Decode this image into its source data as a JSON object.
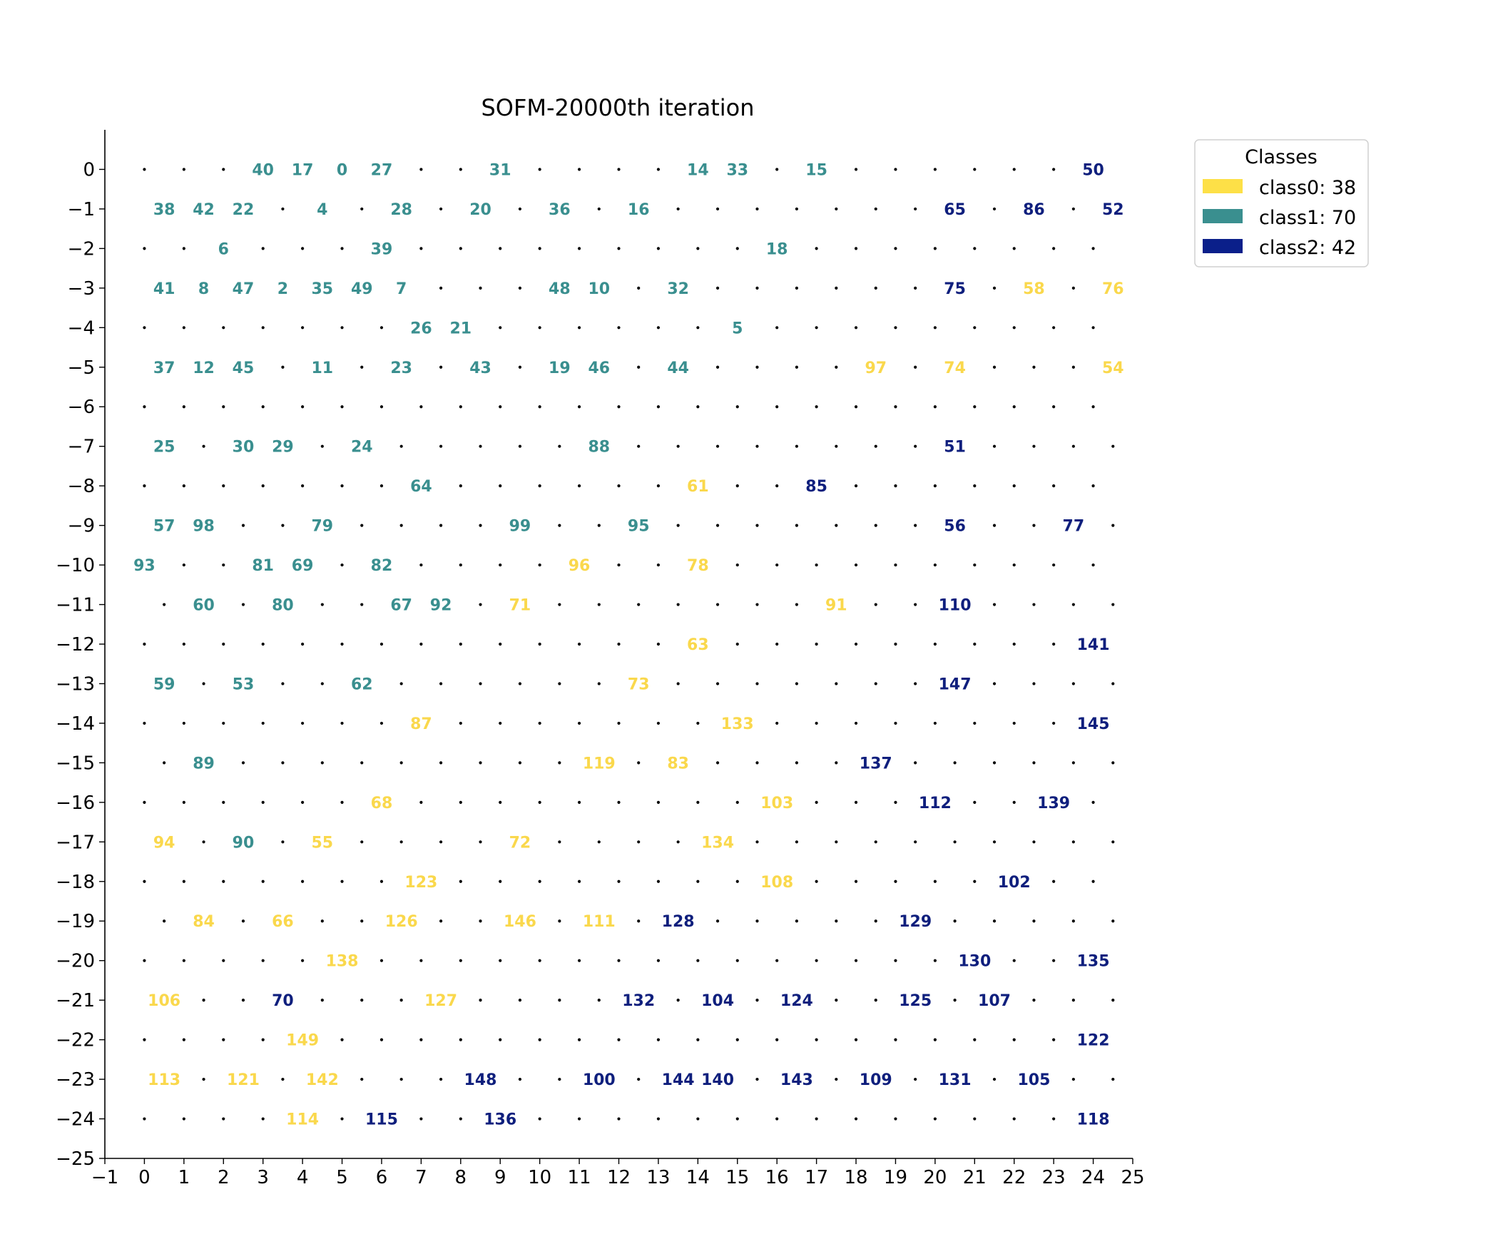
{
  "chart_data": {
    "type": "scatter",
    "title": "SOFM-20000th iteration",
    "xlim": [
      -1,
      25
    ],
    "ylim": [
      -25,
      1
    ],
    "xticks": [
      -1,
      0,
      1,
      2,
      3,
      4,
      5,
      6,
      7,
      8,
      9,
      10,
      11,
      12,
      13,
      14,
      15,
      16,
      17,
      18,
      19,
      20,
      21,
      22,
      23,
      24,
      25
    ],
    "yticks": [
      0,
      -1,
      -2,
      -3,
      -4,
      -5,
      -6,
      -7,
      -8,
      -9,
      -10,
      -11,
      -12,
      -13,
      -14,
      -15,
      -16,
      -17,
      -18,
      -19,
      -20,
      -21,
      -22,
      -23,
      -24,
      -25
    ],
    "grid": false,
    "legend": {
      "title": "Classes",
      "position": "outside-top-right",
      "entries": [
        {
          "label": "class0: 38",
          "color": "#fde047"
        },
        {
          "label": "class1: 70",
          "color": "#3a8f8f"
        },
        {
          "label": "class2: 42",
          "color": "#0a1f8a"
        }
      ]
    },
    "class_colors": [
      "#fad84c",
      "#3a8f8f",
      "#0f1f7d"
    ],
    "grid_rows": 25,
    "grid_cols": 25,
    "points": [
      {
        "r": 0,
        "c": 3,
        "label": "40",
        "cls": 1
      },
      {
        "r": 0,
        "c": 4,
        "label": "17",
        "cls": 1
      },
      {
        "r": 0,
        "c": 5,
        "label": "0",
        "cls": 1
      },
      {
        "r": 0,
        "c": 6,
        "label": "27",
        "cls": 1
      },
      {
        "r": 0,
        "c": 9,
        "label": "31",
        "cls": 1
      },
      {
        "r": 0,
        "c": 14,
        "label": "14",
        "cls": 1
      },
      {
        "r": 0,
        "c": 15,
        "label": "33",
        "cls": 1
      },
      {
        "r": 0,
        "c": 17,
        "label": "15",
        "cls": 1
      },
      {
        "r": 0,
        "c": 24,
        "label": "50",
        "cls": 2
      },
      {
        "r": 1,
        "c": 0,
        "label": "38",
        "cls": 1
      },
      {
        "r": 1,
        "c": 1,
        "label": "42",
        "cls": 1
      },
      {
        "r": 1,
        "c": 2,
        "label": "22",
        "cls": 1
      },
      {
        "r": 1,
        "c": 4,
        "label": "4",
        "cls": 1
      },
      {
        "r": 1,
        "c": 6,
        "label": "28",
        "cls": 1
      },
      {
        "r": 1,
        "c": 8,
        "label": "20",
        "cls": 1
      },
      {
        "r": 1,
        "c": 10,
        "label": "36",
        "cls": 1
      },
      {
        "r": 1,
        "c": 12,
        "label": "16",
        "cls": 1
      },
      {
        "r": 1,
        "c": 20,
        "label": "65",
        "cls": 2
      },
      {
        "r": 1,
        "c": 22,
        "label": "86",
        "cls": 2
      },
      {
        "r": 1,
        "c": 24,
        "label": "52",
        "cls": 2
      },
      {
        "r": 2,
        "c": 2,
        "label": "6",
        "cls": 1
      },
      {
        "r": 2,
        "c": 6,
        "label": "39",
        "cls": 1
      },
      {
        "r": 2,
        "c": 16,
        "label": "18",
        "cls": 1
      },
      {
        "r": 3,
        "c": 0,
        "label": "41",
        "cls": 1
      },
      {
        "r": 3,
        "c": 1,
        "label": "8",
        "cls": 1
      },
      {
        "r": 3,
        "c": 2,
        "label": "47",
        "cls": 1
      },
      {
        "r": 3,
        "c": 3,
        "label": "2",
        "cls": 1
      },
      {
        "r": 3,
        "c": 4,
        "label": "35",
        "cls": 1
      },
      {
        "r": 3,
        "c": 5,
        "label": "49",
        "cls": 1
      },
      {
        "r": 3,
        "c": 6,
        "label": "7",
        "cls": 1
      },
      {
        "r": 3,
        "c": 10,
        "label": "48",
        "cls": 1
      },
      {
        "r": 3,
        "c": 11,
        "label": "10",
        "cls": 1
      },
      {
        "r": 3,
        "c": 13,
        "label": "32",
        "cls": 1
      },
      {
        "r": 3,
        "c": 20,
        "label": "75",
        "cls": 2
      },
      {
        "r": 3,
        "c": 22,
        "label": "58",
        "cls": 0
      },
      {
        "r": 3,
        "c": 24,
        "label": "76",
        "cls": 0
      },
      {
        "r": 4,
        "c": 7,
        "label": "26",
        "cls": 1
      },
      {
        "r": 4,
        "c": 8,
        "label": "21",
        "cls": 1
      },
      {
        "r": 4,
        "c": 15,
        "label": "5",
        "cls": 1
      },
      {
        "r": 5,
        "c": 0,
        "label": "37",
        "cls": 1
      },
      {
        "r": 5,
        "c": 1,
        "label": "12",
        "cls": 1
      },
      {
        "r": 5,
        "c": 2,
        "label": "45",
        "cls": 1
      },
      {
        "r": 5,
        "c": 4,
        "label": "11",
        "cls": 1
      },
      {
        "r": 5,
        "c": 6,
        "label": "23",
        "cls": 1
      },
      {
        "r": 5,
        "c": 8,
        "label": "43",
        "cls": 1
      },
      {
        "r": 5,
        "c": 10,
        "label": "19",
        "cls": 1
      },
      {
        "r": 5,
        "c": 11,
        "label": "46",
        "cls": 1
      },
      {
        "r": 5,
        "c": 13,
        "label": "44",
        "cls": 1
      },
      {
        "r": 5,
        "c": 18,
        "label": "97",
        "cls": 0
      },
      {
        "r": 5,
        "c": 20,
        "label": "74",
        "cls": 0
      },
      {
        "r": 5,
        "c": 24,
        "label": "54",
        "cls": 0
      },
      {
        "r": 7,
        "c": 0,
        "label": "25",
        "cls": 1
      },
      {
        "r": 7,
        "c": 2,
        "label": "30",
        "cls": 1
      },
      {
        "r": 7,
        "c": 3,
        "label": "29",
        "cls": 1
      },
      {
        "r": 7,
        "c": 5,
        "label": "24",
        "cls": 1
      },
      {
        "r": 7,
        "c": 11,
        "label": "88",
        "cls": 1
      },
      {
        "r": 7,
        "c": 20,
        "label": "51",
        "cls": 2
      },
      {
        "r": 8,
        "c": 7,
        "label": "64",
        "cls": 1
      },
      {
        "r": 8,
        "c": 14,
        "label": "61",
        "cls": 0
      },
      {
        "r": 8,
        "c": 17,
        "label": "85",
        "cls": 2
      },
      {
        "r": 9,
        "c": 0,
        "label": "57",
        "cls": 1
      },
      {
        "r": 9,
        "c": 1,
        "label": "98",
        "cls": 1
      },
      {
        "r": 9,
        "c": 4,
        "label": "79",
        "cls": 1
      },
      {
        "r": 9,
        "c": 9,
        "label": "99",
        "cls": 1
      },
      {
        "r": 9,
        "c": 12,
        "label": "95",
        "cls": 1
      },
      {
        "r": 9,
        "c": 20,
        "label": "56",
        "cls": 2
      },
      {
        "r": 9,
        "c": 23,
        "label": "77",
        "cls": 2
      },
      {
        "r": 10,
        "c": 0,
        "label": "93",
        "cls": 1
      },
      {
        "r": 10,
        "c": 3,
        "label": "81",
        "cls": 1
      },
      {
        "r": 10,
        "c": 4,
        "label": "69",
        "cls": 1
      },
      {
        "r": 10,
        "c": 6,
        "label": "82",
        "cls": 1
      },
      {
        "r": 10,
        "c": 11,
        "label": "96",
        "cls": 0
      },
      {
        "r": 10,
        "c": 14,
        "label": "78",
        "cls": 0
      },
      {
        "r": 11,
        "c": 1,
        "label": "60",
        "cls": 1
      },
      {
        "r": 11,
        "c": 3,
        "label": "80",
        "cls": 1
      },
      {
        "r": 11,
        "c": 6,
        "label": "67",
        "cls": 1
      },
      {
        "r": 11,
        "c": 7,
        "label": "92",
        "cls": 1
      },
      {
        "r": 11,
        "c": 9,
        "label": "71",
        "cls": 0
      },
      {
        "r": 11,
        "c": 17,
        "label": "91",
        "cls": 0
      },
      {
        "r": 11,
        "c": 20,
        "label": "110",
        "cls": 2
      },
      {
        "r": 12,
        "c": 14,
        "label": "63",
        "cls": 0
      },
      {
        "r": 12,
        "c": 24,
        "label": "141",
        "cls": 2
      },
      {
        "r": 13,
        "c": 0,
        "label": "59",
        "cls": 1
      },
      {
        "r": 13,
        "c": 2,
        "label": "53",
        "cls": 1
      },
      {
        "r": 13,
        "c": 5,
        "label": "62",
        "cls": 1
      },
      {
        "r": 13,
        "c": 12,
        "label": "73",
        "cls": 0
      },
      {
        "r": 13,
        "c": 20,
        "label": "147",
        "cls": 2
      },
      {
        "r": 14,
        "c": 7,
        "label": "87",
        "cls": 0
      },
      {
        "r": 14,
        "c": 15,
        "label": "133",
        "cls": 0
      },
      {
        "r": 14,
        "c": 24,
        "label": "145",
        "cls": 2
      },
      {
        "r": 15,
        "c": 1,
        "label": "89",
        "cls": 1
      },
      {
        "r": 15,
        "c": 11,
        "label": "119",
        "cls": 0
      },
      {
        "r": 15,
        "c": 13,
        "label": "83",
        "cls": 0
      },
      {
        "r": 15,
        "c": 18,
        "label": "137",
        "cls": 2
      },
      {
        "r": 16,
        "c": 6,
        "label": "68",
        "cls": 0
      },
      {
        "r": 16,
        "c": 16,
        "label": "103",
        "cls": 0
      },
      {
        "r": 16,
        "c": 20,
        "label": "112",
        "cls": 2
      },
      {
        "r": 16,
        "c": 23,
        "label": "139",
        "cls": 2
      },
      {
        "r": 17,
        "c": 0,
        "label": "94",
        "cls": 0
      },
      {
        "r": 17,
        "c": 2,
        "label": "90",
        "cls": 1
      },
      {
        "r": 17,
        "c": 4,
        "label": "55",
        "cls": 0
      },
      {
        "r": 17,
        "c": 9,
        "label": "72",
        "cls": 0
      },
      {
        "r": 17,
        "c": 14,
        "label": "134",
        "cls": 0
      },
      {
        "r": 18,
        "c": 7,
        "label": "123",
        "cls": 0
      },
      {
        "r": 18,
        "c": 16,
        "label": "108",
        "cls": 0
      },
      {
        "r": 18,
        "c": 22,
        "label": "102",
        "cls": 2
      },
      {
        "r": 19,
        "c": 1,
        "label": "84",
        "cls": 0
      },
      {
        "r": 19,
        "c": 3,
        "label": "66",
        "cls": 0
      },
      {
        "r": 19,
        "c": 6,
        "label": "126",
        "cls": 0
      },
      {
        "r": 19,
        "c": 9,
        "label": "146",
        "cls": 0
      },
      {
        "r": 19,
        "c": 11,
        "label": "111",
        "cls": 0
      },
      {
        "r": 19,
        "c": 13,
        "label": "128",
        "cls": 2
      },
      {
        "r": 19,
        "c": 19,
        "label": "129",
        "cls": 2
      },
      {
        "r": 20,
        "c": 5,
        "label": "138",
        "cls": 0
      },
      {
        "r": 20,
        "c": 21,
        "label": "130",
        "cls": 2
      },
      {
        "r": 20,
        "c": 24,
        "label": "135",
        "cls": 2
      },
      {
        "r": 21,
        "c": 0,
        "label": "106",
        "cls": 0
      },
      {
        "r": 21,
        "c": 3,
        "label": "70",
        "cls": 2
      },
      {
        "r": 21,
        "c": 7,
        "label": "127",
        "cls": 0
      },
      {
        "r": 21,
        "c": 12,
        "label": "132",
        "cls": 2
      },
      {
        "r": 21,
        "c": 14,
        "label": "104",
        "cls": 2
      },
      {
        "r": 21,
        "c": 16,
        "label": "124",
        "cls": 2
      },
      {
        "r": 21,
        "c": 19,
        "label": "125",
        "cls": 2
      },
      {
        "r": 21,
        "c": 21,
        "label": "107",
        "cls": 2
      },
      {
        "r": 22,
        "c": 4,
        "label": "149",
        "cls": 0
      },
      {
        "r": 22,
        "c": 24,
        "label": "122",
        "cls": 2
      },
      {
        "r": 23,
        "c": 0,
        "label": "113",
        "cls": 0
      },
      {
        "r": 23,
        "c": 2,
        "label": "121",
        "cls": 0
      },
      {
        "r": 23,
        "c": 4,
        "label": "142",
        "cls": 0
      },
      {
        "r": 23,
        "c": 8,
        "label": "148",
        "cls": 2
      },
      {
        "r": 23,
        "c": 11,
        "label": "100",
        "cls": 2
      },
      {
        "r": 23,
        "c": 13,
        "label": "144",
        "cls": 2
      },
      {
        "r": 23,
        "c": 14,
        "label": "140",
        "cls": 2
      },
      {
        "r": 23,
        "c": 16,
        "label": "143",
        "cls": 2
      },
      {
        "r": 23,
        "c": 18,
        "label": "109",
        "cls": 2
      },
      {
        "r": 23,
        "c": 20,
        "label": "131",
        "cls": 2
      },
      {
        "r": 23,
        "c": 22,
        "label": "105",
        "cls": 2
      },
      {
        "r": 24,
        "c": 4,
        "label": "114",
        "cls": 0
      },
      {
        "r": 24,
        "c": 6,
        "label": "115",
        "cls": 2
      },
      {
        "r": 24,
        "c": 9,
        "label": "136",
        "cls": 2
      },
      {
        "r": 24,
        "c": 24,
        "label": "118",
        "cls": 2
      }
    ]
  }
}
